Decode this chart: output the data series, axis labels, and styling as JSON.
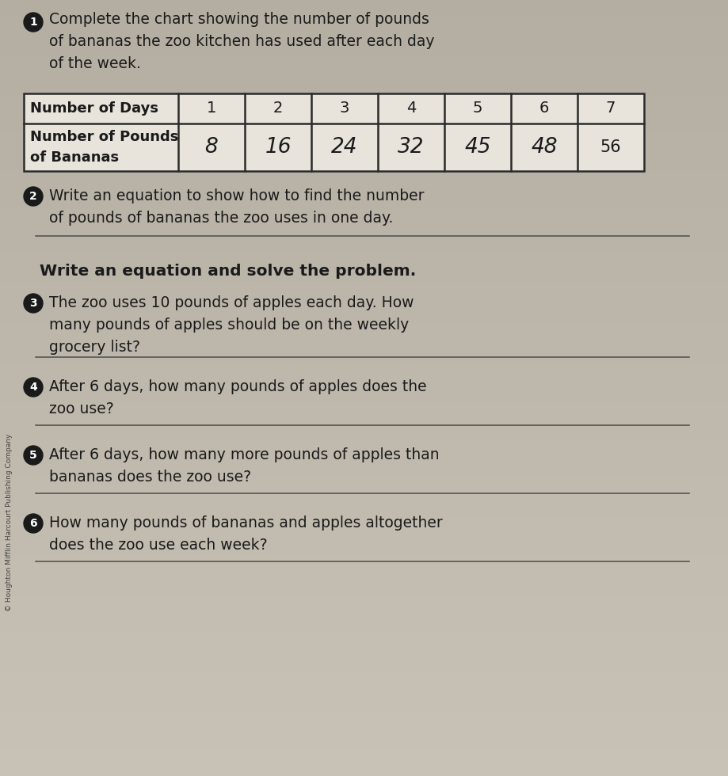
{
  "bg_color": "#c4bdb0",
  "bg_gradient_top": "#d0ccc4",
  "bg_gradient_bottom": "#b8b4ac",
  "title_q1": "Complete the chart showing the number of pounds\nof bananas the zoo kitchen has used after each day\nof the week.",
  "table_header": [
    "Number of Days",
    "1",
    "2",
    "3",
    "4",
    "5",
    "6",
    "7"
  ],
  "table_row1_label": "Number of Pounds\nof Bananas",
  "table_row1_values": [
    "8",
    "16",
    "24",
    "32",
    "45",
    "48",
    "56"
  ],
  "table_handwritten": [
    true,
    true,
    true,
    true,
    true,
    true,
    false
  ],
  "q2_text": "Write an equation to show how to find the number\nof pounds of bananas the zoo uses in one day.",
  "write_eq_label": "Write an equation and solve the problem.",
  "q3_text": "The zoo uses 10 pounds of apples each day. How\nmany pounds of apples should be on the weekly\ngrocery list?",
  "q4_text": "After 6 days, how many pounds of apples does the\nzoo use?",
  "q5_text": "After 6 days, how many more pounds of apples than\nbananas does the zoo use?",
  "q6_text": "How many pounds of bananas and apples altogether\ndoes the zoo use each week?",
  "sidebar_text": "© Houghton Mifflin Harcourt Publishing Company",
  "circle_color": "#1a1a1a",
  "text_color": "#1a1a1a",
  "line_color": "#555555",
  "table_border_color": "#2a2a2a",
  "table_bg": "#d8d4cc"
}
